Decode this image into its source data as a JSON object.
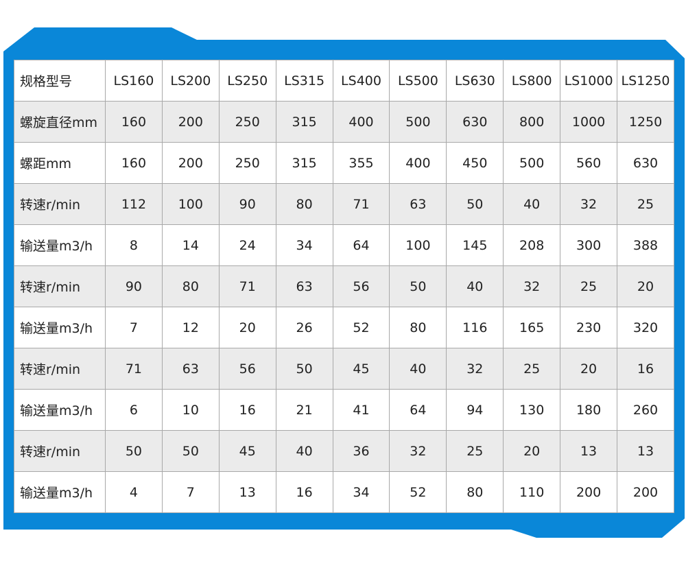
{
  "colors": {
    "frame": "#0a87d8",
    "shade": "#ebebeb",
    "grid": "#a8a8a8"
  },
  "table": {
    "header": {
      "label": "规格型号",
      "models": [
        "LS160",
        "LS200",
        "LS250",
        "LS315",
        "LS400",
        "LS500",
        "LS630",
        "LS800",
        "LS1000",
        "LS1250"
      ]
    },
    "rows": [
      {
        "label": "螺旋直径mm",
        "values": [
          "160",
          "200",
          "250",
          "315",
          "400",
          "500",
          "630",
          "800",
          "1000",
          "1250"
        ]
      },
      {
        "label": "螺距mm",
        "values": [
          "160",
          "200",
          "250",
          "315",
          "355",
          "400",
          "450",
          "500",
          "560",
          "630"
        ]
      },
      {
        "label": "转速r/min",
        "values": [
          "112",
          "100",
          "90",
          "80",
          "71",
          "63",
          "50",
          "40",
          "32",
          "25"
        ]
      },
      {
        "label": "输送量m3/h",
        "values": [
          "8",
          "14",
          "24",
          "34",
          "64",
          "100",
          "145",
          "208",
          "300",
          "388"
        ]
      },
      {
        "label": "转速r/min",
        "values": [
          "90",
          "80",
          "71",
          "63",
          "56",
          "50",
          "40",
          "32",
          "25",
          "20"
        ]
      },
      {
        "label": "输送量m3/h",
        "values": [
          "7",
          "12",
          "20",
          "26",
          "52",
          "80",
          "116",
          "165",
          "230",
          "320"
        ]
      },
      {
        "label": "转速r/min",
        "values": [
          "71",
          "63",
          "56",
          "50",
          "45",
          "40",
          "32",
          "25",
          "20",
          "16"
        ]
      },
      {
        "label": "输送量m3/h",
        "values": [
          "6",
          "10",
          "16",
          "21",
          "41",
          "64",
          "94",
          "130",
          "180",
          "260"
        ]
      },
      {
        "label": "转速r/min",
        "values": [
          "50",
          "50",
          "45",
          "40",
          "36",
          "32",
          "25",
          "20",
          "13",
          "13"
        ]
      },
      {
        "label": "输送量m3/h",
        "values": [
          "4",
          "7",
          "13",
          "16",
          "34",
          "52",
          "80",
          "110",
          "200",
          "200"
        ]
      }
    ]
  }
}
